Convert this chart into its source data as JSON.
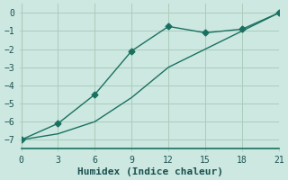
{
  "xlabel": "Humidex (Indice chaleur)",
  "bg_color": "#cce8e0",
  "grid_color": "#aaccbb",
  "line_color": "#1a7060",
  "line1_x": [
    0,
    3,
    6,
    9,
    12,
    15,
    18,
    21
  ],
  "line1_y": [
    -7.0,
    -6.67,
    -6.0,
    -4.67,
    -3.0,
    -2.0,
    -1.0,
    0.0
  ],
  "line2_x": [
    0,
    3,
    6,
    9,
    12,
    15,
    18,
    21
  ],
  "line2_y": [
    -7.0,
    -6.1,
    -4.5,
    -2.1,
    -0.75,
    -1.1,
    -0.9,
    0.0
  ],
  "xlim": [
    0,
    21
  ],
  "ylim": [
    -7.5,
    0.5
  ],
  "xticks": [
    0,
    3,
    6,
    9,
    12,
    15,
    18,
    21
  ],
  "yticks": [
    0,
    -1,
    -2,
    -3,
    -4,
    -5,
    -6,
    -7
  ],
  "marker": "D",
  "markersize": 3.5,
  "linewidth": 1.0,
  "tick_fontsize": 7,
  "xlabel_fontsize": 8
}
